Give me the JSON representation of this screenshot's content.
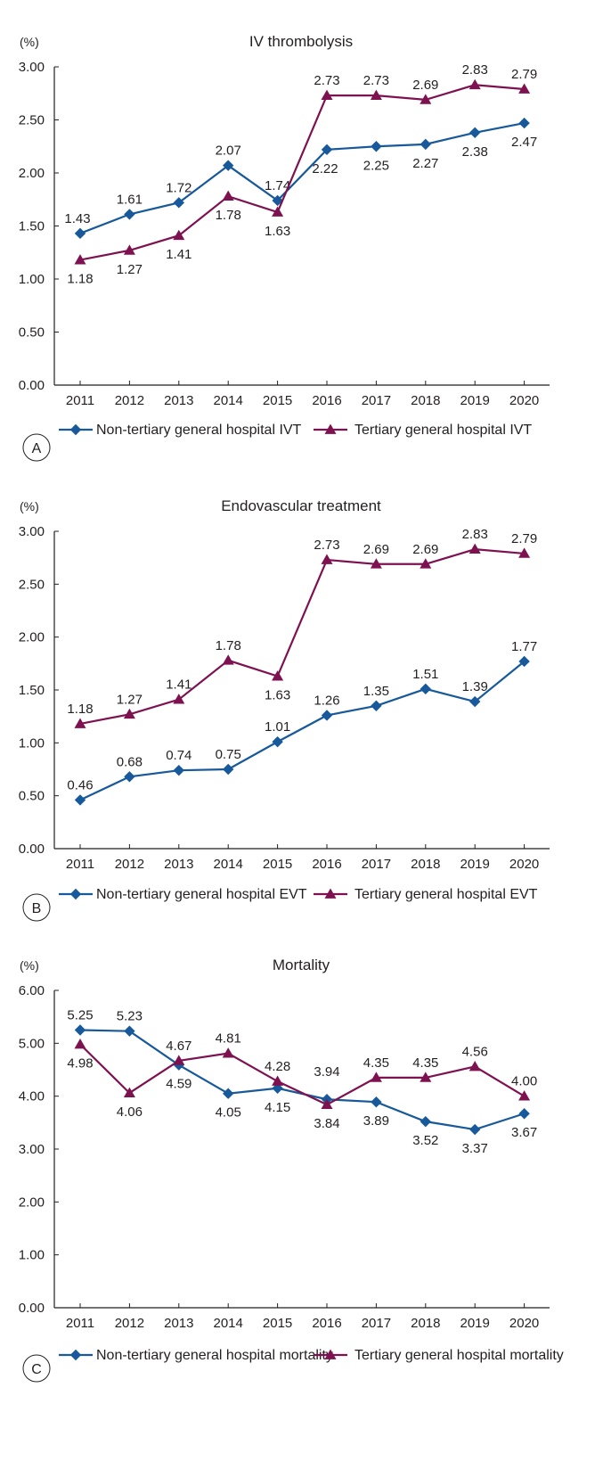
{
  "colors": {
    "non_tertiary": "#17599a",
    "tertiary": "#7e1250",
    "axis": "#231f20"
  },
  "chart_data": [
    {
      "type": "line",
      "panel": "A",
      "title": "IV thrombolysis",
      "ylabel": "(%)",
      "xlabel": "",
      "ylim": [
        0,
        3
      ],
      "yticks": [
        "0.00",
        "0.50",
        "1.00",
        "1.50",
        "2.00",
        "2.50",
        "3.00"
      ],
      "categories": [
        "2011",
        "2012",
        "2013",
        "2014",
        "2015",
        "2016",
        "2017",
        "2018",
        "2019",
        "2020"
      ],
      "series": [
        {
          "name": "Non-tertiary general hospital IVT",
          "marker": "diamond",
          "values": [
            1.43,
            1.61,
            1.72,
            2.07,
            1.74,
            2.22,
            2.25,
            2.27,
            2.38,
            2.47
          ],
          "labels": [
            "1.43",
            "1.61",
            "1.72",
            "2.07",
            "1.74",
            "2.22",
            "2.25",
            "2.27",
            "2.38",
            "2.47"
          ]
        },
        {
          "name": "Tertiary general hospital IVT",
          "marker": "triangle",
          "values": [
            1.18,
            1.27,
            1.41,
            1.78,
            1.63,
            2.73,
            2.73,
            2.69,
            2.83,
            2.79
          ],
          "labels": [
            "1.18",
            "1.27",
            "1.41",
            "1.78",
            "1.63",
            "2.73",
            "2.73",
            "2.69",
            "2.83",
            "2.79"
          ]
        }
      ]
    },
    {
      "type": "line",
      "panel": "B",
      "title": "Endovascular treatment",
      "ylabel": "(%)",
      "xlabel": "",
      "ylim": [
        0,
        3
      ],
      "yticks": [
        "0.00",
        "0.50",
        "1.00",
        "1.50",
        "2.00",
        "2.50",
        "3.00"
      ],
      "categories": [
        "2011",
        "2012",
        "2013",
        "2014",
        "2015",
        "2016",
        "2017",
        "2018",
        "2019",
        "2020"
      ],
      "series": [
        {
          "name": "Non-tertiary general hospital EVT",
          "marker": "diamond",
          "values": [
            0.46,
            0.68,
            0.74,
            0.75,
            1.01,
            1.26,
            1.35,
            1.51,
            1.39,
            1.77
          ],
          "labels": [
            "0.46",
            "0.68",
            "0.74",
            "0.75",
            "1.01",
            "1.26",
            "1.35",
            "1.51",
            "1.39",
            "1.77"
          ]
        },
        {
          "name": "Tertiary general hospital EVT",
          "marker": "triangle",
          "values": [
            1.18,
            1.27,
            1.41,
            1.78,
            1.63,
            2.73,
            2.69,
            2.69,
            2.83,
            2.79
          ],
          "labels": [
            "1.18",
            "1.27",
            "1.41",
            "1.78",
            "1.63",
            "2.73",
            "2.69",
            "2.69",
            "2.83",
            "2.79"
          ]
        }
      ]
    },
    {
      "type": "line",
      "panel": "C",
      "title": "Mortality",
      "ylabel": "(%)",
      "xlabel": "",
      "ylim": [
        0,
        6
      ],
      "yticks": [
        "0.00",
        "1.00",
        "2.00",
        "3.00",
        "4.00",
        "5.00",
        "6.00"
      ],
      "categories": [
        "2011",
        "2012",
        "2013",
        "2014",
        "2015",
        "2016",
        "2017",
        "2018",
        "2019",
        "2020"
      ],
      "series": [
        {
          "name": "Non-tertiary general hospital mortality",
          "marker": "diamond",
          "values": [
            5.25,
            5.23,
            4.59,
            4.05,
            4.15,
            3.94,
            3.89,
            3.52,
            3.37,
            3.67
          ],
          "labels": [
            "5.25",
            "5.23",
            "4.59",
            "4.05",
            "4.15",
            "3.94",
            "3.89",
            "3.52",
            "3.37",
            "3.67"
          ]
        },
        {
          "name": "Tertiary general hospital mortality",
          "marker": "triangle",
          "values": [
            4.98,
            4.06,
            4.67,
            4.81,
            4.28,
            3.84,
            4.35,
            4.35,
            4.56,
            4.0
          ],
          "labels": [
            "4.98",
            "4.06",
            "4.67",
            "4.81",
            "4.28",
            "3.84",
            "4.35",
            "4.35",
            "4.56",
            "4.00"
          ]
        }
      ]
    }
  ]
}
